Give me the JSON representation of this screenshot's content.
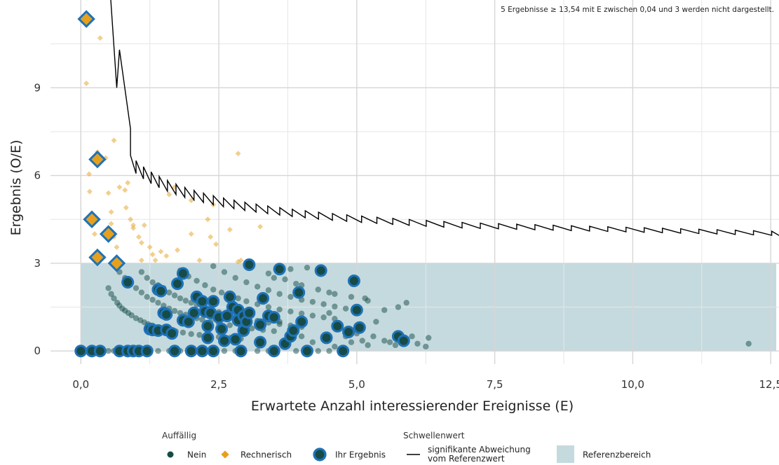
{
  "chart_data": {
    "type": "scatter",
    "note": "5 Ergebnisse ≥ 13,54 mit E zwischen 0,04 und 3 werden nicht dargestellt.",
    "xlabel": "Erwartete Anzahl interessierender Ereignisse (E)",
    "ylabel": "Ergebnis (O/E)",
    "xlim": [
      -0.55,
      12.65
    ],
    "ylim": [
      -0.45,
      12
    ],
    "x_ticks": [
      {
        "value": 0,
        "label": "0,0"
      },
      {
        "value": 2.5,
        "label": "2,5"
      },
      {
        "value": 5,
        "label": "5,0"
      },
      {
        "value": 7.5,
        "label": "7,5"
      },
      {
        "value": 10,
        "label": "10,0"
      },
      {
        "value": 12.5,
        "label": "12,5"
      }
    ],
    "y_ticks": [
      {
        "value": 0,
        "label": "0"
      },
      {
        "value": 3,
        "label": "3"
      },
      {
        "value": 6,
        "label": "6"
      },
      {
        "value": 9,
        "label": "9"
      }
    ],
    "reference_range": {
      "x": [
        0,
        12.6
      ],
      "y": [
        0,
        3
      ],
      "color": "#c5dade"
    },
    "grid": true,
    "legend": {
      "placement": "bottom",
      "group1_title": "Auffällig",
      "group2_title": "Schwellenwert",
      "nein": "Nein",
      "rechnerisch": "Rechnerisch",
      "ihr_ergebnis": "Ihr Ergebnis",
      "threshold_line1": "signifikante Abweichung",
      "threshold_line2": "vom Referenzwert",
      "referenzbereich": "Referenzbereich"
    },
    "colors": {
      "nein": "#164b47",
      "rechnerisch": "#e6a01e",
      "ihr_ergebnis_ring": "#1e72b8",
      "threshold": "#000000"
    },
    "series": [
      {
        "name": "Nein",
        "points": [
          [
            0.5,
            2.15
          ],
          [
            0.55,
            1.95
          ],
          [
            0.6,
            1.8
          ],
          [
            0.66,
            1.65
          ],
          [
            0.7,
            1.55
          ],
          [
            0.75,
            1.45
          ],
          [
            0.8,
            1.38
          ],
          [
            0.86,
            1.3
          ],
          [
            0.92,
            1.22
          ],
          [
            1.0,
            1.12
          ],
          [
            1.08,
            1.05
          ],
          [
            1.15,
            0.98
          ],
          [
            1.22,
            0.92
          ],
          [
            1.3,
            0.87
          ],
          [
            1.4,
            0.81
          ],
          [
            1.5,
            0.76
          ],
          [
            1.6,
            0.72
          ],
          [
            1.72,
            0.67
          ],
          [
            1.85,
            0.63
          ],
          [
            2.0,
            0.58
          ],
          [
            2.15,
            0.55
          ],
          [
            2.3,
            0.52
          ],
          [
            2.5,
            0.48
          ],
          [
            2.7,
            0.45
          ],
          [
            2.9,
            0.42
          ],
          [
            0.7,
            2.7
          ],
          [
            0.8,
            2.5
          ],
          [
            0.9,
            2.3
          ],
          [
            1.0,
            2.15
          ],
          [
            1.1,
            2.0
          ],
          [
            1.2,
            1.85
          ],
          [
            1.3,
            1.75
          ],
          [
            1.4,
            1.65
          ],
          [
            1.5,
            1.55
          ],
          [
            1.6,
            1.45
          ],
          [
            1.7,
            1.37
          ],
          [
            1.8,
            1.3
          ],
          [
            1.9,
            1.24
          ],
          [
            2.0,
            1.18
          ],
          [
            2.1,
            1.12
          ],
          [
            2.2,
            1.07
          ],
          [
            2.35,
            1.0
          ],
          [
            2.5,
            0.95
          ],
          [
            2.7,
            0.88
          ],
          [
            2.9,
            0.82
          ],
          [
            3.1,
            0.77
          ],
          [
            3.3,
            0.72
          ],
          [
            3.5,
            0.68
          ],
          [
            1.1,
            2.7
          ],
          [
            1.2,
            2.5
          ],
          [
            1.3,
            2.35
          ],
          [
            1.4,
            2.25
          ],
          [
            1.5,
            2.15
          ],
          [
            1.6,
            2.0
          ],
          [
            1.7,
            1.9
          ],
          [
            1.8,
            1.8
          ],
          [
            1.9,
            1.72
          ],
          [
            2.0,
            1.65
          ],
          [
            2.1,
            1.58
          ],
          [
            2.2,
            1.5
          ],
          [
            2.3,
            1.45
          ],
          [
            2.4,
            1.38
          ],
          [
            2.5,
            1.33
          ],
          [
            2.6,
            1.28
          ],
          [
            2.7,
            1.23
          ],
          [
            2.8,
            1.18
          ],
          [
            3.0,
            1.1
          ],
          [
            3.2,
            1.03
          ],
          [
            3.4,
            0.97
          ],
          [
            3.6,
            0.92
          ],
          [
            3.8,
            0.87
          ],
          [
            4.0,
            0.82
          ],
          [
            1.8,
            2.75
          ],
          [
            1.95,
            2.55
          ],
          [
            2.1,
            2.4
          ],
          [
            2.25,
            2.25
          ],
          [
            2.4,
            2.1
          ],
          [
            2.55,
            2.0
          ],
          [
            2.7,
            1.9
          ],
          [
            2.85,
            1.8
          ],
          [
            3.0,
            1.7
          ],
          [
            3.2,
            1.6
          ],
          [
            3.4,
            1.5
          ],
          [
            3.6,
            1.42
          ],
          [
            3.8,
            1.35
          ],
          [
            4.0,
            1.28
          ],
          [
            4.2,
            1.21
          ],
          [
            4.4,
            1.15
          ],
          [
            4.6,
            1.1
          ],
          [
            2.4,
            2.9
          ],
          [
            2.6,
            2.7
          ],
          [
            2.8,
            2.5
          ],
          [
            3.0,
            2.35
          ],
          [
            3.2,
            2.2
          ],
          [
            3.4,
            2.08
          ],
          [
            3.6,
            1.95
          ],
          [
            3.8,
            1.85
          ],
          [
            4.0,
            1.75
          ],
          [
            4.2,
            1.68
          ],
          [
            4.4,
            1.6
          ],
          [
            4.6,
            1.52
          ],
          [
            4.8,
            1.45
          ],
          [
            5.0,
            1.4
          ],
          [
            3.1,
            2.9
          ],
          [
            3.4,
            2.65
          ],
          [
            3.7,
            2.45
          ],
          [
            4.0,
            2.25
          ],
          [
            4.3,
            2.1
          ],
          [
            4.6,
            1.95
          ],
          [
            4.9,
            1.85
          ],
          [
            5.2,
            1.72
          ],
          [
            0.3,
            0
          ],
          [
            0.4,
            0
          ],
          [
            0.5,
            0
          ],
          [
            0.6,
            0
          ],
          [
            0.75,
            0
          ],
          [
            0.9,
            0
          ],
          [
            1.05,
            0
          ],
          [
            1.25,
            0
          ],
          [
            1.4,
            0
          ],
          [
            1.6,
            0
          ],
          [
            1.8,
            0
          ],
          [
            1.95,
            0
          ],
          [
            2.1,
            0
          ],
          [
            2.4,
            0
          ],
          [
            2.6,
            0
          ],
          [
            2.8,
            0
          ],
          [
            3.2,
            0
          ],
          [
            3.4,
            0
          ],
          [
            3.9,
            0
          ],
          [
            4.3,
            0
          ],
          [
            4.5,
            0
          ],
          [
            3.8,
            2.8
          ],
          [
            3.9,
            2.3
          ],
          [
            4.1,
            2.85
          ],
          [
            4.5,
            2.0
          ],
          [
            4.5,
            1.3
          ],
          [
            4.7,
            0.9
          ],
          [
            4.8,
            0.5
          ],
          [
            4.9,
            0.3
          ],
          [
            5.0,
            0.6
          ],
          [
            5.1,
            0.35
          ],
          [
            5.2,
            0.2
          ],
          [
            5.3,
            0.5
          ],
          [
            5.35,
            1.0
          ],
          [
            5.5,
            1.4
          ],
          [
            5.5,
            0.35
          ],
          [
            5.6,
            0.3
          ],
          [
            5.7,
            0.2
          ],
          [
            5.75,
            1.5
          ],
          [
            5.9,
            1.65
          ],
          [
            6.0,
            0.5
          ],
          [
            6.1,
            0.25
          ],
          [
            6.25,
            0.15
          ],
          [
            6.3,
            0.45
          ],
          [
            4.2,
            0.3
          ],
          [
            4.0,
            0.5
          ],
          [
            3.7,
            0.35
          ],
          [
            3.6,
            1.0
          ],
          [
            4.6,
            0.15
          ],
          [
            3.5,
            2.5
          ],
          [
            5.15,
            1.8
          ],
          [
            12.1,
            0.25
          ]
        ]
      },
      {
        "name": "Rechnerisch",
        "points": [
          [
            0.1,
            9.15
          ],
          [
            0.35,
            10.7
          ],
          [
            0.3,
            6.8
          ],
          [
            0.15,
            6.05
          ],
          [
            0.16,
            5.45
          ],
          [
            0.2,
            4.5
          ],
          [
            0.25,
            4.0
          ],
          [
            0.3,
            3.4
          ],
          [
            0.45,
            6.6
          ],
          [
            0.5,
            5.4
          ],
          [
            0.55,
            4.75
          ],
          [
            0.55,
            4.35
          ],
          [
            0.6,
            3.9
          ],
          [
            0.6,
            7.2
          ],
          [
            0.65,
            3.55
          ],
          [
            0.7,
            5.6
          ],
          [
            0.8,
            5.5
          ],
          [
            0.82,
            4.9
          ],
          [
            0.85,
            5.75
          ],
          [
            0.9,
            4.5
          ],
          [
            0.95,
            4.3
          ],
          [
            0.95,
            4.2
          ],
          [
            1.05,
            3.9
          ],
          [
            1.1,
            3.7
          ],
          [
            1.15,
            4.3
          ],
          [
            1.1,
            3.1
          ],
          [
            1.25,
            3.55
          ],
          [
            1.3,
            3.3
          ],
          [
            1.35,
            3.1
          ],
          [
            1.45,
            3.4
          ],
          [
            1.55,
            3.25
          ],
          [
            1.6,
            5.35
          ],
          [
            1.7,
            5.6
          ],
          [
            1.75,
            3.45
          ],
          [
            2.0,
            4.0
          ],
          [
            2.0,
            5.15
          ],
          [
            2.15,
            3.1
          ],
          [
            2.3,
            4.5
          ],
          [
            2.35,
            3.9
          ],
          [
            2.4,
            5.0
          ],
          [
            2.45,
            3.65
          ],
          [
            2.7,
            4.15
          ],
          [
            2.85,
            3.05
          ],
          [
            2.9,
            3.1
          ],
          [
            2.85,
            6.75
          ],
          [
            3.25,
            4.25
          ]
        ]
      },
      {
        "name": "Ihr Ergebnis",
        "points": [
          [
            0.0,
            0
          ],
          [
            0.2,
            0
          ],
          [
            0.35,
            0
          ],
          [
            0.7,
            0
          ],
          [
            0.85,
            0
          ],
          [
            0.95,
            0
          ],
          [
            1.05,
            0
          ],
          [
            1.2,
            0
          ],
          [
            1.7,
            0
          ],
          [
            2.0,
            0
          ],
          [
            2.2,
            0
          ],
          [
            2.4,
            0
          ],
          [
            2.9,
            0
          ],
          [
            3.5,
            0
          ],
          [
            4.1,
            0
          ],
          [
            4.75,
            0
          ],
          [
            0.85,
            2.35
          ],
          [
            1.4,
            2.1
          ],
          [
            1.45,
            2.05
          ],
          [
            1.75,
            2.3
          ],
          [
            1.85,
            2.65
          ],
          [
            1.25,
            0.75
          ],
          [
            1.3,
            0.72
          ],
          [
            1.4,
            0.7
          ],
          [
            1.55,
            0.72
          ],
          [
            1.65,
            0.6
          ],
          [
            1.5,
            1.3
          ],
          [
            1.55,
            1.25
          ],
          [
            1.85,
            1.05
          ],
          [
            1.95,
            1.0
          ],
          [
            2.05,
            1.3
          ],
          [
            2.1,
            1.85
          ],
          [
            2.2,
            1.7
          ],
          [
            2.25,
            1.35
          ],
          [
            2.3,
            0.85
          ],
          [
            2.3,
            0.45
          ],
          [
            2.35,
            1.3
          ],
          [
            2.4,
            1.7
          ],
          [
            2.5,
            1.15
          ],
          [
            2.55,
            0.75
          ],
          [
            2.6,
            0.35
          ],
          [
            2.65,
            1.2
          ],
          [
            2.7,
            1.85
          ],
          [
            2.75,
            1.5
          ],
          [
            2.8,
            0.4
          ],
          [
            2.85,
            1.05
          ],
          [
            2.85,
            1.4
          ],
          [
            2.95,
            0.7
          ],
          [
            2.95,
            1.2
          ],
          [
            3.0,
            1.0
          ],
          [
            3.05,
            2.95
          ],
          [
            3.05,
            1.3
          ],
          [
            3.25,
            0.9
          ],
          [
            3.25,
            0.3
          ],
          [
            3.3,
            1.8
          ],
          [
            3.4,
            1.2
          ],
          [
            3.5,
            1.15
          ],
          [
            3.6,
            2.8
          ],
          [
            3.7,
            0.25
          ],
          [
            3.8,
            0.5
          ],
          [
            3.85,
            0.7
          ],
          [
            3.95,
            2.0
          ],
          [
            4.0,
            1.0
          ],
          [
            4.35,
            2.75
          ],
          [
            4.45,
            0.45
          ],
          [
            4.65,
            0.85
          ],
          [
            4.85,
            0.65
          ],
          [
            4.95,
            2.4
          ],
          [
            5.0,
            1.4
          ],
          [
            5.05,
            0.8
          ],
          [
            5.75,
            0.5
          ],
          [
            5.85,
            0.35
          ]
        ]
      },
      {
        "name": "Rechnerisch + Ihr Ergebnis",
        "points": [
          [
            0.1,
            11.35
          ],
          [
            0.3,
            6.55
          ],
          [
            0.2,
            4.5
          ],
          [
            0.5,
            4.0
          ],
          [
            0.3,
            3.2
          ],
          [
            0.65,
            3.0
          ]
        ]
      }
    ],
    "threshold": {
      "start": {
        "x": 0.5,
        "y": 13.2
      },
      "anchor": 0.9,
      "flat_y": 4.2,
      "flat_x": 7.0,
      "k": 3.0,
      "slope_end": 3.95,
      "end_x": 12.65
    }
  }
}
